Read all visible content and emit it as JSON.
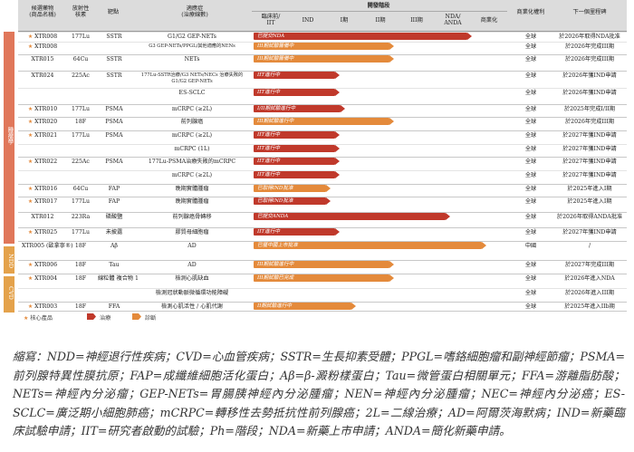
{
  "header": {
    "candidate": "候選藥物\n(商品名稱)",
    "nuclide": "放射性\n核素",
    "target": "靶點",
    "indication": "適應症\n(治療線數)",
    "dev_stage": "開發階段",
    "stage_cols": [
      "臨床前/\nIIT",
      "IND",
      "I期",
      "II期",
      "III期",
      "NDA/\nANDA",
      "商業化"
    ],
    "rights": "商業化權利",
    "milestone": "下一個里程碑"
  },
  "categories": [
    {
      "name": "腫瘤學",
      "color": "#e0775a"
    },
    {
      "name": "NDD",
      "color": "#e4a24b"
    },
    {
      "name": "CVD",
      "color": "#e4a24b"
    }
  ],
  "rows": [
    {
      "name": "XTR008",
      "core": true,
      "nuclide": "177Lu",
      "target": "SSTR",
      "indication": "G1/G2 GEP-NETs",
      "bar": "红",
      "bar_label": "已提交NDA",
      "rights": "全球",
      "milestone": "於2026年取得NDA批准"
    },
    {
      "name": "XTR008",
      "core": true,
      "nuclide": "",
      "target": "",
      "indication": "G3 GEP-NETs/PPGL/其他適應的NENs",
      "bar": "",
      "bar_label": "III期試驗籌備中",
      "rights": "全球",
      "milestone": "於2026年完成III期"
    },
    {
      "name": "XTR015",
      "core": false,
      "nuclide": "64Cu",
      "target": "SSTR",
      "indication": "NETs",
      "bar_label": "III期試驗籌備中",
      "rights": "全球",
      "milestone": "於2026年完成III期"
    },
    {
      "name": "XTR024",
      "core": false,
      "nuclide": "225Ac",
      "target": "SSTR",
      "indication": "177Lu-SSTR治療/G3 NETs/NECs 治療失敗的G1/G2 GEP-NETs",
      "bar_label": "IIT進行中",
      "rights": "全球",
      "milestone": "於2026年獲IND申請"
    },
    {
      "name": "",
      "core": false,
      "nuclide": "",
      "target": "",
      "indication": "ES-SCLC",
      "bar_label": "IIT進行中",
      "rights": "全球",
      "milestone": "於2026年獲IND申請"
    },
    {
      "name": "XTR010",
      "core": true,
      "nuclide": "177Lu",
      "target": "PSMA",
      "indication": "mCRPC (≥2L)",
      "bar_label": "I/II期試驗進行中",
      "rights": "全球",
      "milestone": "於2025年完成I/II期"
    },
    {
      "name": "XTR020",
      "core": true,
      "nuclide": "18F",
      "target": "PSMA",
      "indication": "前列腺癌",
      "bar_label": "III期試驗進行中",
      "rights": "全球",
      "milestone": "於2026年完成III期"
    },
    {
      "name": "XTR021",
      "core": true,
      "nuclide": "177Lu",
      "target": "PSMA",
      "indication": "mCRPC (≥2L)",
      "bar_label": "IIT進行中",
      "rights": "全球",
      "milestone": "於2027年獲IND申請"
    },
    {
      "name": "",
      "core": false,
      "nuclide": "",
      "target": "",
      "indication": "mCRPC (1L)",
      "bar_label": "IIT進行中",
      "rights": "全球",
      "milestone": "於2027年獲IND申請"
    },
    {
      "name": "XTR022",
      "core": true,
      "nuclide": "225Ac",
      "target": "PSMA",
      "indication": "177Lu-PSMA治療失敗的mCRPC",
      "bar_label": "IIT進行中",
      "rights": "全球",
      "milestone": "於2027年獲IND申請"
    },
    {
      "name": "",
      "core": false,
      "nuclide": "",
      "target": "",
      "indication": "mCRPC (≥2L)",
      "bar_label": "IIT進行中",
      "rights": "全球",
      "milestone": "於2027年獲IND申請"
    },
    {
      "name": "XTR016",
      "core": true,
      "nuclide": "64Cu",
      "target": "FAP",
      "indication": "晚期實體腫瘤",
      "bar_label": "已取得IND批准",
      "rights": "全球",
      "milestone": "於2025年進入I期"
    },
    {
      "name": "XTR017",
      "core": true,
      "nuclide": "177Lu",
      "target": "FAP",
      "indication": "晚期實體腫瘤",
      "bar_label": "已取得IND批准",
      "rights": "全球",
      "milestone": "於2025年進入I期"
    },
    {
      "name": "XTR012",
      "core": false,
      "nuclide": "223Ra",
      "target": "磷酸鹽",
      "indication": "前列腺癌骨轉移",
      "bar_label": "已提交ANDA",
      "rights": "全球",
      "milestone": "於2026年取得ANDA批准"
    },
    {
      "name": "XTR025",
      "core": true,
      "nuclide": "177Lu",
      "target": "未披露",
      "indication": "膠質母細胞瘤",
      "bar_label": "IIT進行中",
      "rights": "全球",
      "milestone": "於2027年獲IND申請"
    },
    {
      "name": "XTR005\n(歐拿寧®)",
      "core": false,
      "nuclide": "18F",
      "target": "Aβ",
      "indication": "AD",
      "bar_label": "已獲中國上市批准",
      "rights": "中國",
      "milestone": "/"
    },
    {
      "name": "XTR006",
      "core": true,
      "nuclide": "18F",
      "target": "Tau",
      "indication": "AD",
      "bar_label": "III期試驗進行中",
      "rights": "全球",
      "milestone": "於2027年完成III期"
    },
    {
      "name": "XTR004",
      "core": true,
      "nuclide": "18F",
      "target": "線粒體\n複合物 1",
      "indication": "檢測心肌缺血",
      "bar_label": "III期試驗已完成",
      "rights": "全球",
      "milestone": "於2026年進入NDA"
    },
    {
      "name": "",
      "core": false,
      "nuclide": "",
      "target": "",
      "indication": "檢測冠狀動脈微循環功能障礙",
      "bar_label": "",
      "rights": "全球",
      "milestone": "於2026年進入III期"
    },
    {
      "name": "XTR003",
      "core": true,
      "nuclide": "18F",
      "target": "FFA",
      "indication": "檢測心肌活性 / 心肌代謝",
      "bar_label": "II期試驗進行中",
      "rights": "全球",
      "milestone": "於2025年進入IIb期"
    }
  ],
  "legend": {
    "core": "核心產品",
    "therapy": "治療",
    "diagnosis": "診斷"
  },
  "footnote": "縮寫：NDD=神經退行性疾病；CVD=心血管疾病；SSTR=生長抑素受體；PPGL=嗜鉻細胞瘤和副神經節瘤；PSMA=前列腺特異性膜抗原；FAP=成纖維細胞活化蛋白；Aβ=β-澱粉樣蛋白；Tau=微管蛋白相關單元；FFA=游離脂肪酸；NETs=神經內分泌瘤；GEP-NETs=胃腸胰神經內分泌腫瘤；NEN=神經內分泌腫瘤；NEC=神經內分泌癌；ES-SCLC=廣泛期小細胞肺癌；mCRPC=轉移性去勢抵抗性前列腺癌；2L=二線治療；AD=阿爾茨海默病；IND=新藥臨床試驗申請；IIT=研究者啟動的試驗；Ph=階段；NDA=新藥上市申請；ANDA=簡化新藥申請。",
  "colors": {
    "therapy": "#c0392b",
    "diagnosis": "#e48a3b"
  }
}
